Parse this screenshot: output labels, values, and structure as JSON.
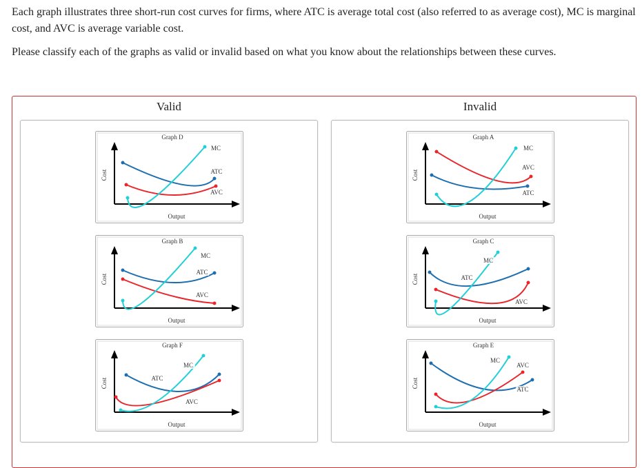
{
  "instructions": [
    "Each graph illustrates three short-run cost curves for firms, where ATC is average total cost (also referred to as average cost), MC is marginal cost, and AVC is average variable cost.",
    "Please classify each of the graphs as valid or invalid based on what you know about the relationships between these curves."
  ],
  "columns": [
    {
      "title": "Valid",
      "graphs": [
        {
          "title": "Graph D",
          "y_label": "Cost",
          "x_label": "Output",
          "curve_labels": [
            "MC",
            "ATC",
            "AVC"
          ]
        },
        {
          "title": "Graph B",
          "y_label": "Cost",
          "x_label": "Output",
          "curve_labels": [
            "MC",
            "ATC",
            "AVC"
          ]
        },
        {
          "title": "Graph F",
          "y_label": "Cost",
          "x_label": "Output",
          "curve_labels": [
            "MC",
            "ATC",
            "AVC"
          ]
        }
      ]
    },
    {
      "title": "Invalid",
      "graphs": [
        {
          "title": "Graph A",
          "y_label": "Cost",
          "x_label": "Output",
          "curve_labels": [
            "MC",
            "AVC",
            "ATC"
          ]
        },
        {
          "title": "Graph C",
          "y_label": "Cost",
          "x_label": "Output",
          "curve_labels": [
            "MC",
            "ATC",
            "AVC"
          ]
        },
        {
          "title": "Graph E",
          "y_label": "Cost",
          "x_label": "Output",
          "curve_labels": [
            "MC",
            "AVC",
            "ATC"
          ]
        }
      ]
    }
  ]
}
